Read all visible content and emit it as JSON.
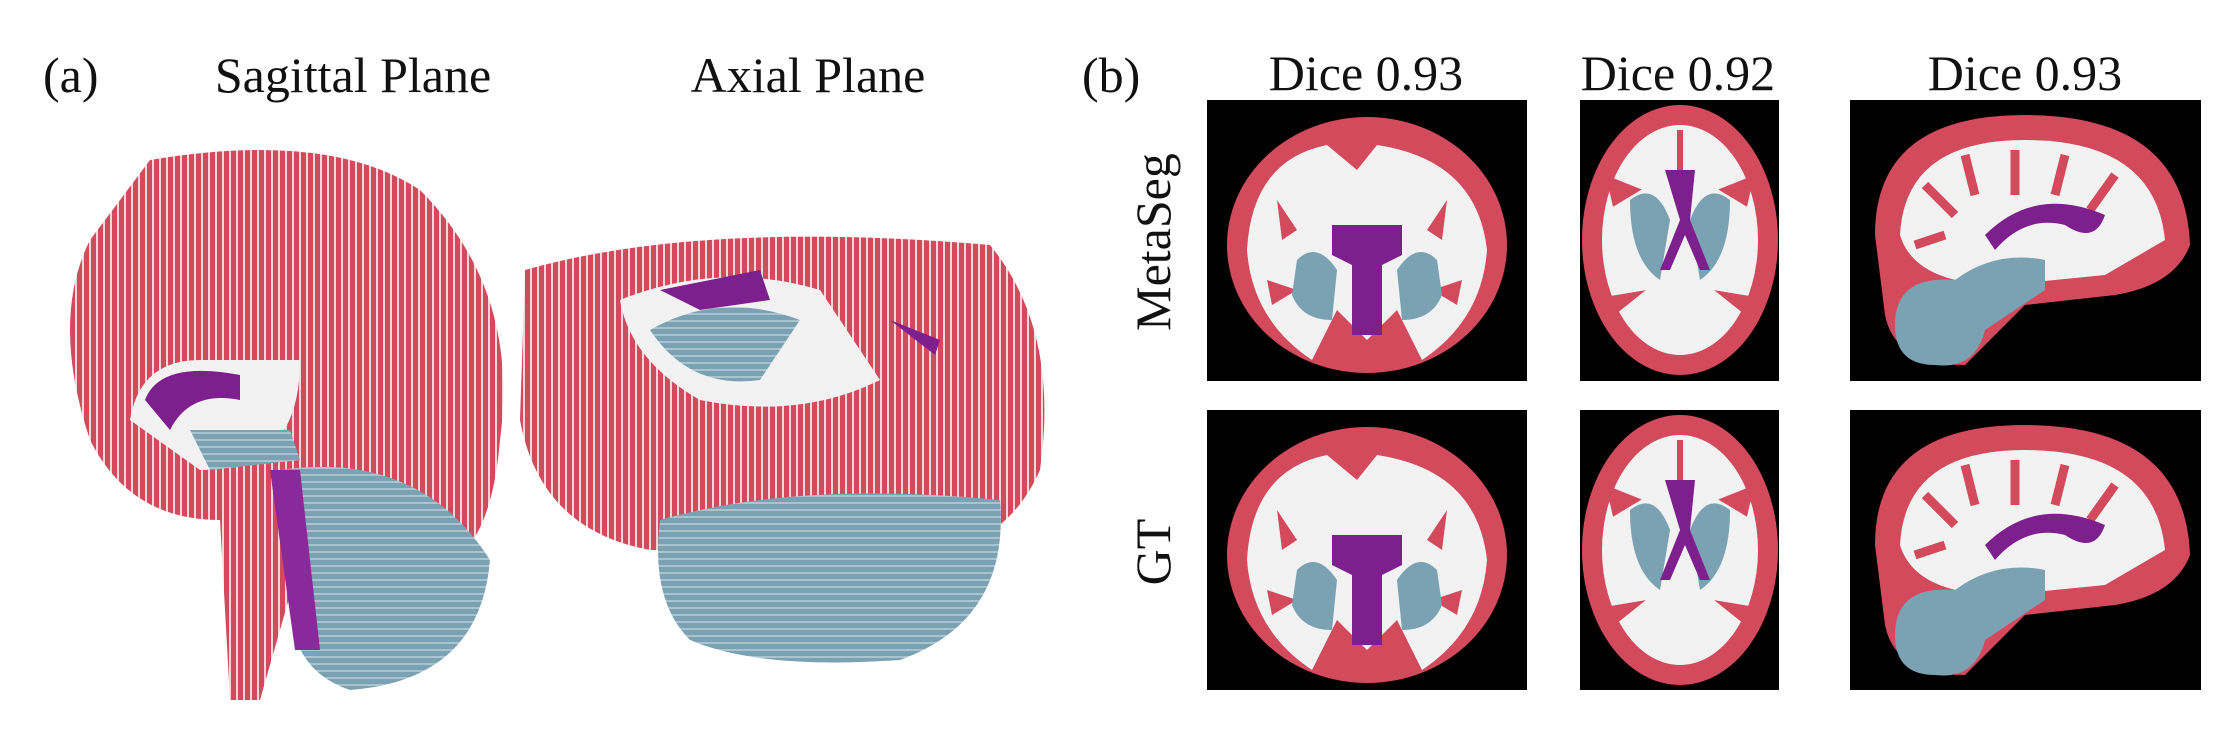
{
  "panel_a": {
    "label": "(a)",
    "views": [
      "Sagittal Plane",
      "Axial Plane"
    ]
  },
  "panel_b": {
    "label": "(b)",
    "columns": [
      "Dice 0.93",
      "Dice 0.92",
      "Dice 0.93"
    ],
    "rows": [
      "MetaSeg",
      "GT"
    ]
  }
}
